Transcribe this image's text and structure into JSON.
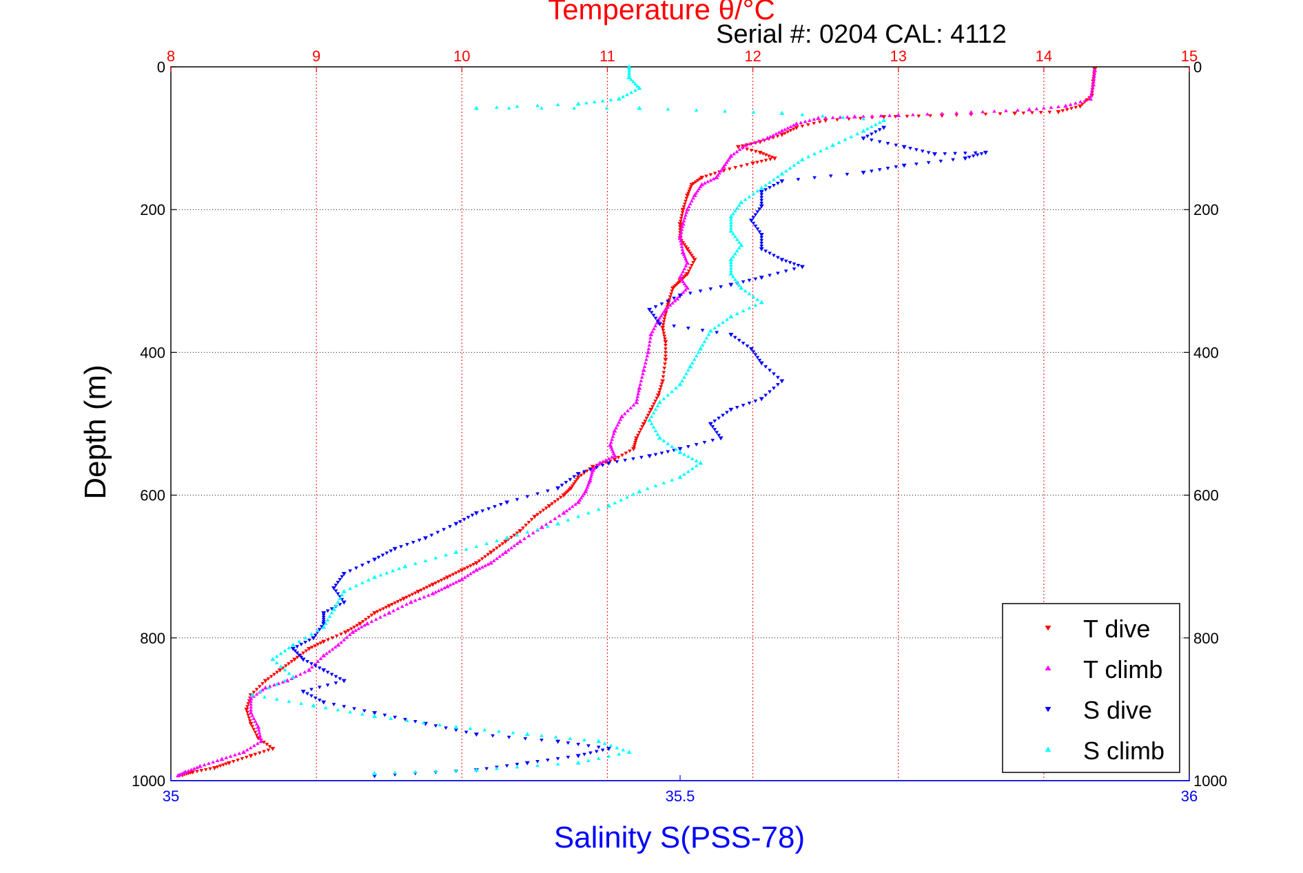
{
  "chart_data": {
    "type": "scatter",
    "title": "Temperature θ/°C",
    "subtitle": "Serial #: 0204  CAL: 4112",
    "ylabel": "Depth (m)",
    "xlabel": "Salinity S(PSS-78)",
    "top_axis": {
      "label": "Temperature θ/°C",
      "range": [
        8,
        15
      ],
      "ticks": [
        "8",
        "9",
        "10",
        "11",
        "12",
        "13",
        "14",
        "15"
      ],
      "color": "#ff0000"
    },
    "bottom_axis": {
      "label": "Salinity S(PSS-78)",
      "range": [
        35,
        36
      ],
      "ticks": [
        "35",
        "35.5",
        "36"
      ],
      "color": "#0000ff"
    },
    "y_axis": {
      "range": [
        0,
        1000
      ],
      "inverted": true,
      "ticks": [
        "0",
        "200",
        "400",
        "600",
        "800",
        "1000"
      ]
    },
    "grid": true,
    "legend_position": "bottom-right",
    "series": [
      {
        "name": "T dive",
        "axis": "temperature",
        "color": "#ff0000",
        "marker": "triangle-down",
        "points": [
          [
            14.35,
            3
          ],
          [
            14.34,
            20
          ],
          [
            14.33,
            40
          ],
          [
            14.25,
            55
          ],
          [
            14.1,
            63
          ],
          [
            13.8,
            65
          ],
          [
            13.3,
            68
          ],
          [
            12.9,
            70
          ],
          [
            12.5,
            75
          ],
          [
            12.3,
            85
          ],
          [
            12.2,
            95
          ],
          [
            12.05,
            105
          ],
          [
            11.9,
            112
          ],
          [
            12.05,
            120
          ],
          [
            12.15,
            128
          ],
          [
            12.0,
            135
          ],
          [
            11.8,
            145
          ],
          [
            11.65,
            155
          ],
          [
            11.58,
            165
          ],
          [
            11.55,
            180
          ],
          [
            11.52,
            200
          ],
          [
            11.5,
            220
          ],
          [
            11.5,
            240
          ],
          [
            11.55,
            255
          ],
          [
            11.6,
            270
          ],
          [
            11.55,
            290
          ],
          [
            11.5,
            300
          ],
          [
            11.45,
            310
          ],
          [
            11.42,
            330
          ],
          [
            11.4,
            345
          ],
          [
            11.38,
            365
          ],
          [
            11.4,
            385
          ],
          [
            11.4,
            410
          ],
          [
            11.38,
            440
          ],
          [
            11.35,
            460
          ],
          [
            11.3,
            480
          ],
          [
            11.25,
            500
          ],
          [
            11.2,
            520
          ],
          [
            11.18,
            535
          ],
          [
            11.05,
            550
          ],
          [
            10.9,
            560
          ],
          [
            10.8,
            575
          ],
          [
            10.75,
            590
          ],
          [
            10.7,
            600
          ],
          [
            10.6,
            615
          ],
          [
            10.5,
            630
          ],
          [
            10.4,
            650
          ],
          [
            10.3,
            665
          ],
          [
            10.2,
            680
          ],
          [
            10.1,
            695
          ],
          [
            10.0,
            705
          ],
          [
            9.9,
            715
          ],
          [
            9.8,
            725
          ],
          [
            9.7,
            735
          ],
          [
            9.6,
            745
          ],
          [
            9.5,
            755
          ],
          [
            9.4,
            765
          ],
          [
            9.3,
            780
          ],
          [
            9.2,
            792
          ],
          [
            9.05,
            805
          ],
          [
            8.95,
            815
          ],
          [
            8.85,
            830
          ],
          [
            8.75,
            845
          ],
          [
            8.65,
            860
          ],
          [
            8.55,
            880
          ],
          [
            8.52,
            900
          ],
          [
            8.55,
            920
          ],
          [
            8.6,
            940
          ],
          [
            8.7,
            955
          ],
          [
            8.55,
            965
          ],
          [
            8.4,
            975
          ],
          [
            8.3,
            982
          ],
          [
            8.15,
            988
          ],
          [
            8.08,
            992
          ]
        ]
      },
      {
        "name": "T climb",
        "axis": "temperature",
        "color": "#ff00ff",
        "marker": "triangle-up",
        "points": [
          [
            14.35,
            5
          ],
          [
            14.34,
            25
          ],
          [
            14.32,
            45
          ],
          [
            14.15,
            55
          ],
          [
            13.9,
            60
          ],
          [
            13.5,
            64
          ],
          [
            13.0,
            68
          ],
          [
            12.7,
            70
          ],
          [
            12.45,
            72
          ],
          [
            12.3,
            80
          ],
          [
            12.2,
            90
          ],
          [
            12.1,
            100
          ],
          [
            11.95,
            110
          ],
          [
            11.85,
            125
          ],
          [
            11.8,
            140
          ],
          [
            11.75,
            155
          ],
          [
            11.65,
            165
          ],
          [
            11.6,
            180
          ],
          [
            11.55,
            200
          ],
          [
            11.52,
            220
          ],
          [
            11.5,
            240
          ],
          [
            11.52,
            260
          ],
          [
            11.55,
            275
          ],
          [
            11.5,
            295
          ],
          [
            11.55,
            310
          ],
          [
            11.48,
            325
          ],
          [
            11.4,
            340
          ],
          [
            11.35,
            355
          ],
          [
            11.3,
            375
          ],
          [
            11.28,
            400
          ],
          [
            11.25,
            425
          ],
          [
            11.22,
            450
          ],
          [
            11.2,
            470
          ],
          [
            11.1,
            490
          ],
          [
            11.05,
            510
          ],
          [
            11.02,
            530
          ],
          [
            11.05,
            545
          ],
          [
            10.95,
            555
          ],
          [
            10.9,
            565
          ],
          [
            10.88,
            580
          ],
          [
            10.85,
            595
          ],
          [
            10.8,
            610
          ],
          [
            10.7,
            625
          ],
          [
            10.55,
            645
          ],
          [
            10.4,
            665
          ],
          [
            10.3,
            680
          ],
          [
            10.2,
            695
          ],
          [
            10.1,
            705
          ],
          [
            10.0,
            718
          ],
          [
            9.9,
            728
          ],
          [
            9.8,
            738
          ],
          [
            9.65,
            750
          ],
          [
            9.5,
            765
          ],
          [
            9.35,
            780
          ],
          [
            9.25,
            792
          ],
          [
            9.15,
            810
          ],
          [
            9.05,
            825
          ],
          [
            8.95,
            845
          ],
          [
            8.8,
            860
          ],
          [
            8.65,
            870
          ],
          [
            8.55,
            885
          ],
          [
            8.55,
            905
          ],
          [
            8.6,
            925
          ],
          [
            8.62,
            945
          ],
          [
            8.5,
            960
          ],
          [
            8.35,
            970
          ],
          [
            8.2,
            980
          ],
          [
            8.1,
            988
          ],
          [
            8.05,
            993
          ]
        ]
      },
      {
        "name": "S dive",
        "axis": "salinity",
        "color": "#0000ff",
        "marker": "triangle-down",
        "points": [
          [
            35.7,
            85
          ],
          [
            35.68,
            100
          ],
          [
            35.72,
            112
          ],
          [
            35.75,
            122
          ],
          [
            35.8,
            120
          ],
          [
            35.78,
            128
          ],
          [
            35.72,
            138
          ],
          [
            35.68,
            148
          ],
          [
            35.6,
            160
          ],
          [
            35.58,
            175
          ],
          [
            35.58,
            195
          ],
          [
            35.57,
            215
          ],
          [
            35.58,
            235
          ],
          [
            35.58,
            255
          ],
          [
            35.6,
            270
          ],
          [
            35.62,
            280
          ],
          [
            35.58,
            295
          ],
          [
            35.55,
            305
          ],
          [
            35.5,
            320
          ],
          [
            35.47,
            340
          ],
          [
            35.48,
            360
          ],
          [
            35.55,
            375
          ],
          [
            35.57,
            395
          ],
          [
            35.58,
            415
          ],
          [
            35.6,
            440
          ],
          [
            35.58,
            465
          ],
          [
            35.55,
            480
          ],
          [
            35.53,
            500
          ],
          [
            35.54,
            520
          ],
          [
            35.5,
            535
          ],
          [
            35.47,
            545
          ],
          [
            35.43,
            555
          ],
          [
            35.4,
            570
          ],
          [
            35.38,
            590
          ],
          [
            35.33,
            610
          ],
          [
            35.3,
            625
          ],
          [
            35.28,
            640
          ],
          [
            35.25,
            660
          ],
          [
            35.22,
            675
          ],
          [
            35.2,
            690
          ],
          [
            35.17,
            710
          ],
          [
            35.16,
            730
          ],
          [
            35.17,
            750
          ],
          [
            35.15,
            765
          ],
          [
            35.15,
            780
          ],
          [
            35.14,
            800
          ],
          [
            35.12,
            815
          ],
          [
            35.13,
            830
          ],
          [
            35.15,
            845
          ],
          [
            35.17,
            860
          ],
          [
            35.13,
            875
          ],
          [
            35.15,
            890
          ],
          [
            35.2,
            905
          ],
          [
            35.25,
            920
          ],
          [
            35.3,
            935
          ],
          [
            35.38,
            945
          ],
          [
            35.43,
            955
          ],
          [
            35.4,
            965
          ],
          [
            35.35,
            975
          ],
          [
            35.3,
            985
          ],
          [
            35.2,
            993
          ]
        ]
      },
      {
        "name": "S climb",
        "axis": "salinity",
        "color": "#00ffff",
        "marker": "triangle-up",
        "points": [
          [
            35.45,
            0
          ],
          [
            35.45,
            15
          ],
          [
            35.46,
            30
          ],
          [
            35.44,
            45
          ],
          [
            35.4,
            52
          ],
          [
            35.3,
            58
          ],
          [
            35.46,
            58
          ],
          [
            35.6,
            65
          ],
          [
            35.7,
            75
          ],
          [
            35.68,
            90
          ],
          [
            35.65,
            110
          ],
          [
            35.62,
            130
          ],
          [
            35.6,
            150
          ],
          [
            35.58,
            170
          ],
          [
            35.56,
            190
          ],
          [
            35.55,
            210
          ],
          [
            35.55,
            230
          ],
          [
            35.56,
            250
          ],
          [
            35.55,
            270
          ],
          [
            35.55,
            290
          ],
          [
            35.56,
            310
          ],
          [
            35.58,
            330
          ],
          [
            35.55,
            350
          ],
          [
            35.53,
            370
          ],
          [
            35.52,
            395
          ],
          [
            35.51,
            420
          ],
          [
            35.5,
            445
          ],
          [
            35.48,
            470
          ],
          [
            35.47,
            495
          ],
          [
            35.48,
            520
          ],
          [
            35.5,
            540
          ],
          [
            35.52,
            555
          ],
          [
            35.5,
            575
          ],
          [
            35.46,
            595
          ],
          [
            35.43,
            615
          ],
          [
            35.38,
            640
          ],
          [
            35.33,
            660
          ],
          [
            35.28,
            680
          ],
          [
            35.23,
            700
          ],
          [
            35.2,
            715
          ],
          [
            35.17,
            735
          ],
          [
            35.16,
            760
          ],
          [
            35.15,
            785
          ],
          [
            35.12,
            810
          ],
          [
            35.1,
            830
          ],
          [
            35.12,
            855
          ],
          [
            35.08,
            880
          ],
          [
            35.14,
            895
          ],
          [
            35.2,
            910
          ],
          [
            35.28,
            925
          ],
          [
            35.35,
            935
          ],
          [
            35.42,
            945
          ],
          [
            35.45,
            960
          ],
          [
            35.4,
            975
          ],
          [
            35.3,
            985
          ],
          [
            35.2,
            990
          ]
        ]
      }
    ]
  }
}
